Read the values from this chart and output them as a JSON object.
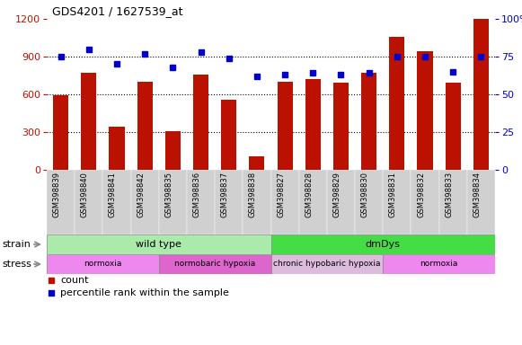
{
  "title": "GDS4201 / 1627539_at",
  "samples": [
    "GSM398839",
    "GSM398840",
    "GSM398841",
    "GSM398842",
    "GSM398835",
    "GSM398836",
    "GSM398837",
    "GSM398838",
    "GSM398827",
    "GSM398828",
    "GSM398829",
    "GSM398830",
    "GSM398831",
    "GSM398832",
    "GSM398833",
    "GSM398834"
  ],
  "counts": [
    590,
    770,
    340,
    700,
    310,
    760,
    560,
    110,
    700,
    720,
    690,
    770,
    1060,
    940,
    690,
    1200
  ],
  "percentiles": [
    75,
    80,
    70,
    77,
    68,
    78,
    74,
    62,
    63,
    64,
    63,
    64,
    75,
    75,
    65,
    75
  ],
  "ylim_left": [
    0,
    1200
  ],
  "ylim_right": [
    0,
    100
  ],
  "yticks_left": [
    0,
    300,
    600,
    900,
    1200
  ],
  "yticks_right": [
    0,
    25,
    50,
    75,
    100
  ],
  "bar_color": "#bb1100",
  "dot_color": "#0000cc",
  "bar_width": 0.55,
  "strain_groups": [
    {
      "label": "wild type",
      "start": 0,
      "end": 8,
      "color": "#aaeaaa"
    },
    {
      "label": "dmDys",
      "start": 8,
      "end": 16,
      "color": "#44dd44"
    }
  ],
  "stress_groups": [
    {
      "label": "normoxia",
      "start": 0,
      "end": 4,
      "color": "#ee88ee"
    },
    {
      "label": "normobaric hypoxia",
      "start": 4,
      "end": 8,
      "color": "#dd66cc"
    },
    {
      "label": "chronic hypobaric hypoxia",
      "start": 8,
      "end": 12,
      "color": "#ddbbdd"
    },
    {
      "label": "normoxia",
      "start": 12,
      "end": 16,
      "color": "#ee88ee"
    }
  ]
}
